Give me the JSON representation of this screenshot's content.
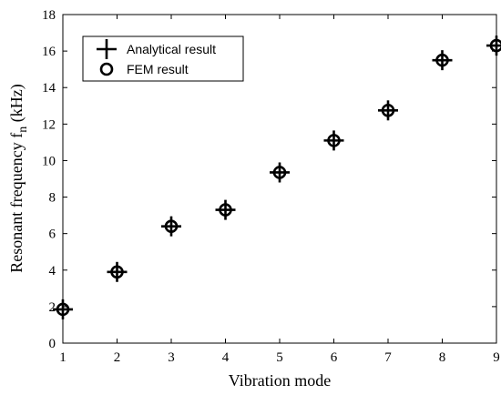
{
  "chart_data": {
    "type": "scatter",
    "xlabel": "Vibration mode",
    "ylabel": {
      "main": "Resonant frequency f",
      "sub": "n",
      "unit": " (kHz)"
    },
    "xlim": [
      1,
      9
    ],
    "ylim": [
      0,
      18
    ],
    "xticks": [
      1,
      2,
      3,
      4,
      5,
      6,
      7,
      8,
      9
    ],
    "yticks": [
      0,
      2,
      4,
      6,
      8,
      10,
      12,
      14,
      16,
      18
    ],
    "grid": false,
    "legend_position": "top-left",
    "series": [
      {
        "name": "Analytical result",
        "marker": "plus",
        "x": [
          1,
          2,
          3,
          4,
          5,
          6,
          7,
          8,
          9
        ],
        "y": [
          1.85,
          3.9,
          6.4,
          7.3,
          9.35,
          11.1,
          12.75,
          15.5,
          16.3
        ]
      },
      {
        "name": "FEM result",
        "marker": "circle",
        "x": [
          1,
          2,
          3,
          4,
          5,
          6,
          7,
          8,
          9
        ],
        "y": [
          1.85,
          3.9,
          6.4,
          7.3,
          9.35,
          11.1,
          12.75,
          15.5,
          16.3
        ]
      }
    ]
  }
}
